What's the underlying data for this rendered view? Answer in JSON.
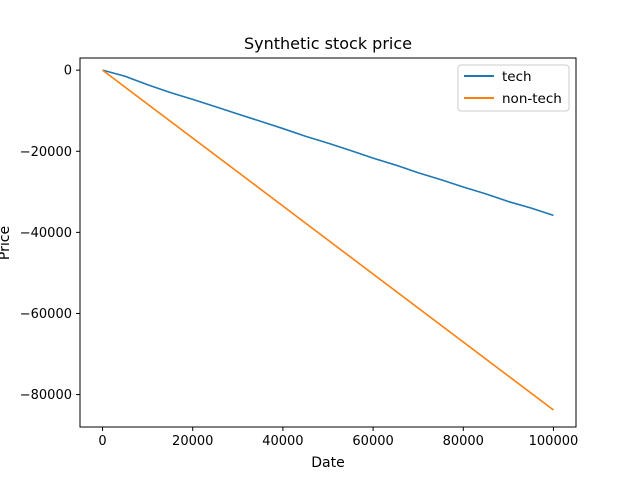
{
  "chart_data": {
    "type": "line",
    "title": "Synthetic stock price",
    "xlabel": "Date",
    "ylabel": "Price",
    "xlim": [
      -5000,
      105000
    ],
    "ylim": [
      -88000,
      3000
    ],
    "x_ticks": [
      0,
      20000,
      40000,
      60000,
      80000,
      100000
    ],
    "x_tick_labels": [
      "0",
      "20000",
      "40000",
      "60000",
      "80000",
      "100000"
    ],
    "y_ticks": [
      0,
      -20000,
      -40000,
      -60000,
      -80000
    ],
    "y_tick_labels": [
      "0",
      "−20000",
      "−40000",
      "−60000",
      "−80000"
    ],
    "grid": false,
    "legend_position": "top-right",
    "series": [
      {
        "name": "tech",
        "color": "#1f77b4",
        "x": [
          0,
          5000,
          10000,
          15000,
          20000,
          25000,
          30000,
          35000,
          40000,
          45000,
          50000,
          55000,
          60000,
          65000,
          70000,
          75000,
          80000,
          85000,
          90000,
          95000,
          100000
        ],
        "y": [
          0,
          -1500,
          -3600,
          -5500,
          -7200,
          -9000,
          -10800,
          -12600,
          -14400,
          -16300,
          -18000,
          -19800,
          -21700,
          -23400,
          -25300,
          -27000,
          -28800,
          -30500,
          -32400,
          -34000,
          -35800
        ]
      },
      {
        "name": "non-tech",
        "color": "#ff7f0e",
        "x": [
          0,
          100000
        ],
        "y": [
          0,
          -83800
        ]
      }
    ]
  }
}
